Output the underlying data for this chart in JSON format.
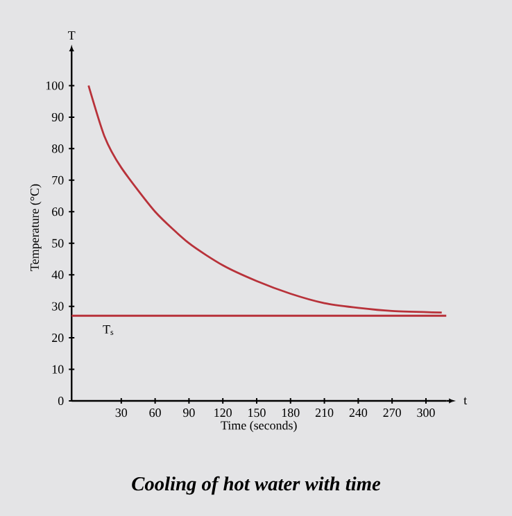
{
  "chart_data": {
    "type": "line",
    "title": "Cooling of hot water with time",
    "xlabel": "Time (seconds)",
    "ylabel": "Temperature (°C)",
    "annotations": [
      "T",
      "t"
    ],
    "x": [
      1,
      15,
      30,
      60,
      90,
      120,
      150,
      180,
      210,
      240,
      270,
      314
    ],
    "series": [
      {
        "color": "#b8323a",
        "values": [
          100,
          84,
          74,
          60,
          50,
          43,
          38,
          34,
          31,
          29.5,
          28.5,
          28
        ]
      }
    ],
    "ref_lines": [
      {
        "axis": "y",
        "value": 27,
        "label": "T$_{s}$",
        "color": "#b8323a"
      }
    ],
    "xlim": [
      -14,
      318
    ],
    "ylim": [
      0,
      110
    ],
    "xticks": [
      30,
      60,
      90,
      120,
      150,
      180,
      210,
      240,
      270,
      300
    ],
    "yticks": [
      0,
      10,
      20,
      30,
      40,
      50,
      60,
      70,
      80,
      90,
      100
    ],
    "grid": false,
    "marker": "none",
    "line_style": "solid"
  }
}
